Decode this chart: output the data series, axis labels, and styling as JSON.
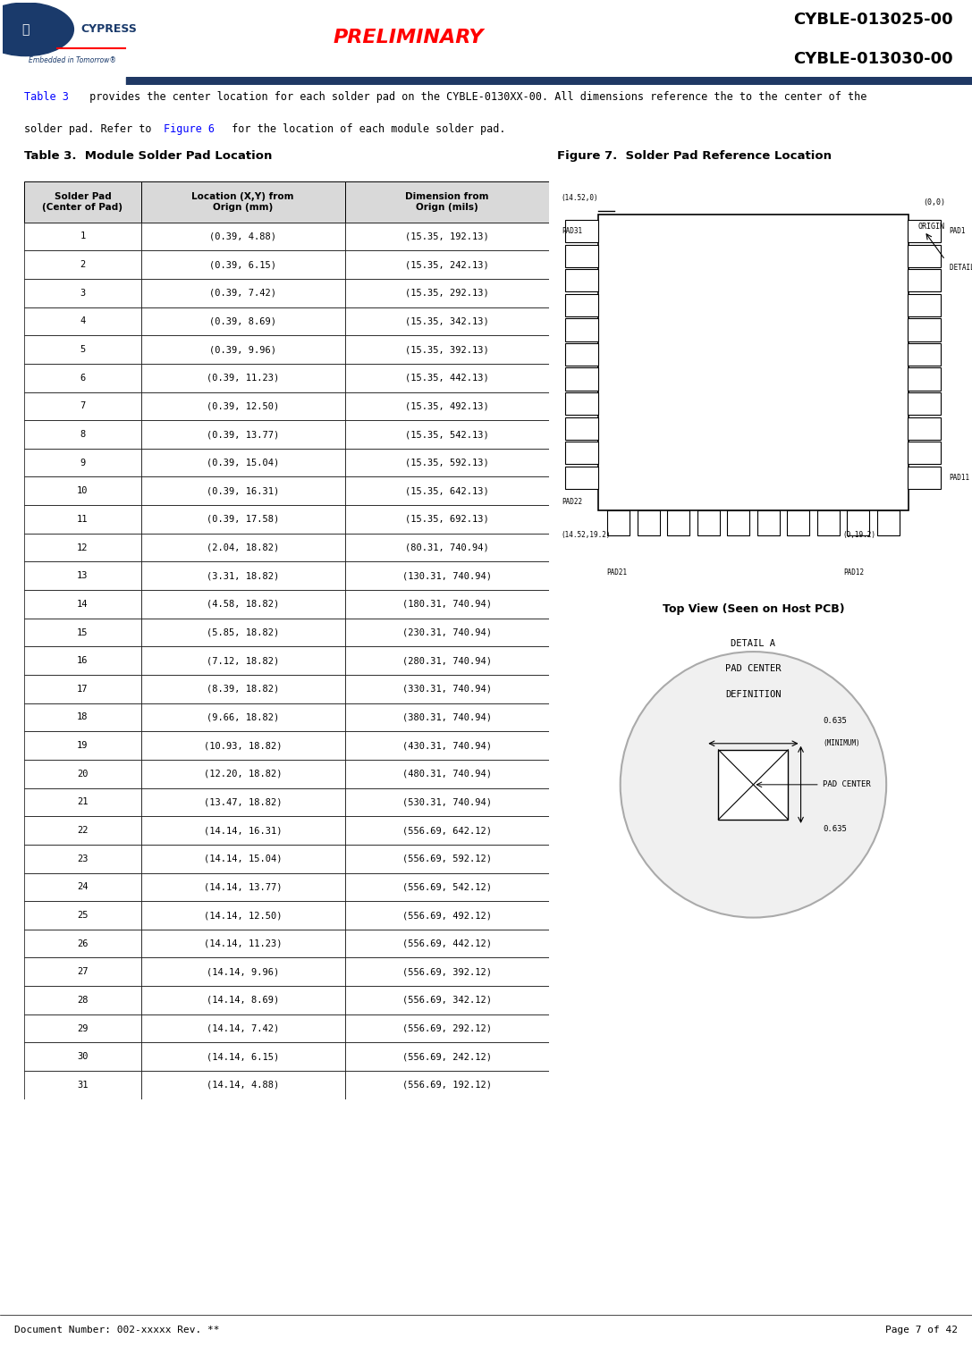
{
  "page_title_line1": "CYBLE-013025-00",
  "page_title_line2": "CYBLE-013030-00",
  "preliminary_text": "PRELIMINARY",
  "company_name": "CYPRESS",
  "company_tagline": "Embedded in Tomorrow®",
  "doc_number": "Document Number: 002-xxxxx Rev. **",
  "page_number": "Page 7 of 42",
  "intro_text": "Table 3 provides the center location for each solder pad on the CYBLE-0130XX-00. All dimensions reference the to the center of the\nsolder pad. Refer to Figure 6 for the location of each module solder pad.",
  "table_title": "Table 3.  Module Solder Pad Location",
  "figure_title": "Figure 7.  Solder Pad Reference Location",
  "figure_bottom_title": "Top View (Seen on Host PCB)",
  "col_headers": [
    "Solder Pad\n(Center of Pad)",
    "Location (X,Y) from\nOrign (mm)",
    "Dimension from\nOrign (mils)"
  ],
  "table_data": [
    [
      "1",
      "(0.39, 4.88)",
      "(15.35, 192.13)"
    ],
    [
      "2",
      "(0.39, 6.15)",
      "(15.35, 242.13)"
    ],
    [
      "3",
      "(0.39, 7.42)",
      "(15.35, 292.13)"
    ],
    [
      "4",
      "(0.39, 8.69)",
      "(15.35, 342.13)"
    ],
    [
      "5",
      "(0.39, 9.96)",
      "(15.35, 392.13)"
    ],
    [
      "6",
      "(0.39, 11.23)",
      "(15.35, 442.13)"
    ],
    [
      "7",
      "(0.39, 12.50)",
      "(15.35, 492.13)"
    ],
    [
      "8",
      "(0.39, 13.77)",
      "(15.35, 542.13)"
    ],
    [
      "9",
      "(0.39, 15.04)",
      "(15.35, 592.13)"
    ],
    [
      "10",
      "(0.39, 16.31)",
      "(15.35, 642.13)"
    ],
    [
      "11",
      "(0.39, 17.58)",
      "(15.35, 692.13)"
    ],
    [
      "12",
      "(2.04, 18.82)",
      "(80.31, 740.94)"
    ],
    [
      "13",
      "(3.31, 18.82)",
      "(130.31, 740.94)"
    ],
    [
      "14",
      "(4.58, 18.82)",
      "(180.31, 740.94)"
    ],
    [
      "15",
      "(5.85, 18.82)",
      "(230.31, 740.94)"
    ],
    [
      "16",
      "(7.12, 18.82)",
      "(280.31, 740.94)"
    ],
    [
      "17",
      "(8.39, 18.82)",
      "(330.31, 740.94)"
    ],
    [
      "18",
      "(9.66, 18.82)",
      "(380.31, 740.94)"
    ],
    [
      "19",
      "(10.93, 18.82)",
      "(430.31, 740.94)"
    ],
    [
      "20",
      "(12.20, 18.82)",
      "(480.31, 740.94)"
    ],
    [
      "21",
      "(13.47, 18.82)",
      "(530.31, 740.94)"
    ],
    [
      "22",
      "(14.14, 16.31)",
      "(556.69, 642.12)"
    ],
    [
      "23",
      "(14.14, 15.04)",
      "(556.69, 592.12)"
    ],
    [
      "24",
      "(14.14, 13.77)",
      "(556.69, 542.12)"
    ],
    [
      "25",
      "(14.14, 12.50)",
      "(556.69, 492.12)"
    ],
    [
      "26",
      "(14.14, 11.23)",
      "(556.69, 442.12)"
    ],
    [
      "27",
      "(14.14, 9.96)",
      "(556.69, 392.12)"
    ],
    [
      "28",
      "(14.14, 8.69)",
      "(556.69, 342.12)"
    ],
    [
      "29",
      "(14.14, 7.42)",
      "(556.69, 292.12)"
    ],
    [
      "30",
      "(14.14, 6.15)",
      "(556.69, 242.12)"
    ],
    [
      "31",
      "(14.14, 4.88)",
      "(556.69, 192.12)"
    ]
  ],
  "header_bg": "#d9d9d9",
  "table_border_color": "#000000",
  "alt_row_bg": "#ffffff",
  "title_color": "#000000",
  "preliminary_color": "#ff0000",
  "header_title_color": "#000333",
  "link_color": "#0000ff",
  "dark_blue": "#1f3864",
  "medium_blue": "#2e4899"
}
